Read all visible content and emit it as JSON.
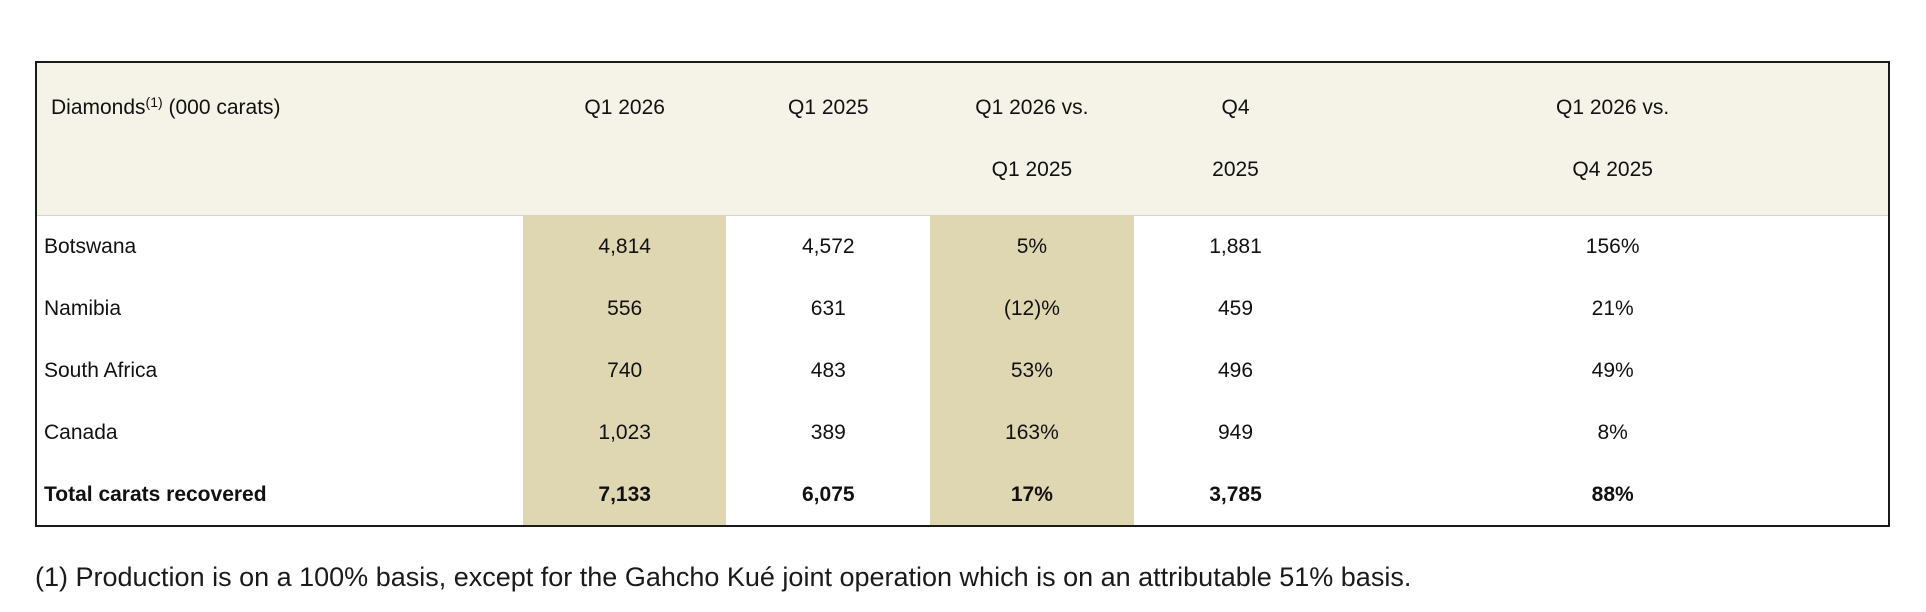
{
  "table": {
    "header": {
      "label": "Diamonds",
      "label_sup": "(1)",
      "label_unit": " (000 carats)",
      "columns": [
        {
          "line1": "Q1 2026",
          "line2": ""
        },
        {
          "line1": "Q1 2025",
          "line2": ""
        },
        {
          "line1": "Q1 2026 vs.",
          "line2": "Q1 2025"
        },
        {
          "line1": "Q4",
          "line2": "2025"
        },
        {
          "line1": "Q1 2026 vs.",
          "line2": "Q4 2025"
        }
      ]
    },
    "rows": [
      {
        "label": "Botswana",
        "values": [
          "4,814",
          "4,572",
          "5%",
          "1,881",
          "156%"
        ]
      },
      {
        "label": "Namibia",
        "values": [
          "556",
          "631",
          "(12)%",
          "459",
          "21%"
        ]
      },
      {
        "label": "South Africa",
        "values": [
          "740",
          "483",
          "53%",
          "496",
          "49%"
        ]
      },
      {
        "label": "Canada",
        "values": [
          "1,023",
          "389",
          "163%",
          "949",
          "8%"
        ]
      },
      {
        "label": "Total carats recovered",
        "values": [
          "7,133",
          "6,075",
          "17%",
          "3,785",
          "88%"
        ]
      }
    ],
    "colors": {
      "header_background": "#f5f2e8",
      "highlight_column": "#dfd7b2",
      "border": "#1a1a1a"
    }
  },
  "footnote": "(1) Production is on a 100% basis, except for the Gahcho Kué joint operation which is on an attributable 51% basis."
}
